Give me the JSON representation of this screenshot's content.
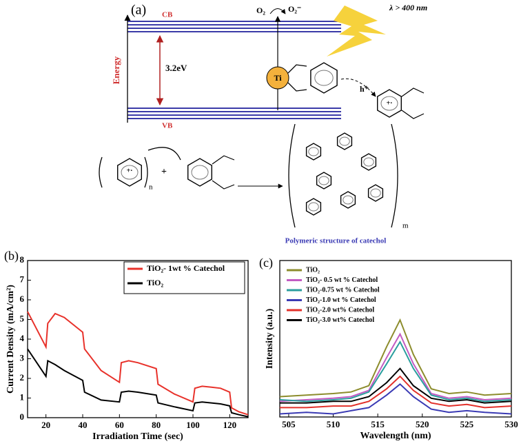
{
  "diagram": {
    "panel_label": "(a)",
    "cb": "CB",
    "vb": "VB",
    "energy": "Energy",
    "gap": "3.2eV",
    "o2": "O₂",
    "o2_radical": "O₂⁻",
    "light": "λ > 400 nm",
    "ti": "Ti",
    "hole": "h⁺",
    "radical": "+·",
    "plus": "+",
    "n": "n",
    "m": "m",
    "caption": "Polymeric structure of catechol"
  },
  "chart_data": [
    {
      "type": "line",
      "panel_label": "(b)",
      "x_label": "Irradiation Time (sec)",
      "y_label": "Current Density (mA/cm²)",
      "x": [
        10,
        20,
        21,
        25,
        30,
        40,
        41,
        50,
        60,
        61,
        65,
        70,
        80,
        81,
        90,
        100,
        101,
        105,
        110,
        115,
        120,
        121,
        125,
        130
      ],
      "series": [
        {
          "name": "TiO₂- 1wt % Catechol",
          "color": "#e8312a",
          "values": [
            5.4,
            3.6,
            4.8,
            5.3,
            5.1,
            4.35,
            3.5,
            2.4,
            1.8,
            2.8,
            2.9,
            2.8,
            2.5,
            1.7,
            1.2,
            0.8,
            1.5,
            1.6,
            1.55,
            1.5,
            1.3,
            0.5,
            0.3,
            0.15
          ]
        },
        {
          "name": "TiO₂",
          "color": "#000000",
          "values": [
            3.5,
            2.1,
            2.9,
            2.7,
            2.4,
            1.9,
            1.3,
            0.9,
            0.8,
            1.3,
            1.35,
            1.3,
            1.15,
            0.75,
            0.55,
            0.35,
            0.75,
            0.8,
            0.75,
            0.7,
            0.6,
            0.25,
            0.15,
            0.05
          ]
        }
      ],
      "xlim": [
        10,
        130
      ],
      "xticks": [
        20,
        40,
        60,
        80,
        100,
        120
      ],
      "ylim": [
        0,
        8
      ],
      "yticks": [
        0,
        1,
        2,
        3,
        4,
        5,
        6,
        7,
        8
      ]
    },
    {
      "type": "line",
      "panel_label": "(c)",
      "x_label": "Wavelength (nm)",
      "y_label": "Intensity (a.u.)",
      "x": [
        504,
        507,
        510,
        512,
        514,
        516,
        517.5,
        519,
        521,
        523,
        525,
        527,
        530
      ],
      "series": [
        {
          "name": "TiO₂",
          "color": "#8c8c2c",
          "values": [
            13,
            14,
            15,
            16,
            20,
            45,
            62,
            40,
            18,
            15,
            16,
            14,
            15
          ]
        },
        {
          "name": "TiO₂- 0.5 wt % Catechol",
          "color": "#c25bc2",
          "values": [
            10,
            11,
            12,
            13,
            17,
            38,
            53,
            34,
            15,
            12,
            13,
            11,
            12
          ]
        },
        {
          "name": "TiO₂-0.75 wt % Catechol",
          "color": "#2a9e9e",
          "values": [
            11,
            10,
            11,
            12,
            16,
            34,
            48,
            31,
            14,
            11,
            12,
            10,
            11
          ]
        },
        {
          "name": "TiO₂-1.0 wt % Catechol",
          "color": "#3a3ab4",
          "values": [
            2,
            3,
            2,
            4,
            6,
            14,
            21,
            13,
            5,
            3,
            4,
            3,
            2
          ]
        },
        {
          "name": "TiO₂-2.0 wt% Catechol",
          "color": "#e2302a",
          "values": [
            6,
            6,
            7,
            7,
            10,
            18,
            26,
            17,
            9,
            7,
            8,
            6,
            7
          ]
        },
        {
          "name": "TiO₂-3.0 wt% Catechol",
          "color": "#000000",
          "values": [
            9,
            9,
            10,
            10,
            13,
            22,
            31,
            20,
            12,
            10,
            11,
            9,
            10
          ]
        }
      ],
      "xlim": [
        504,
        530
      ],
      "xticks": [
        505,
        510,
        515,
        520,
        525,
        530
      ],
      "ylim": [
        0,
        100
      ]
    }
  ]
}
